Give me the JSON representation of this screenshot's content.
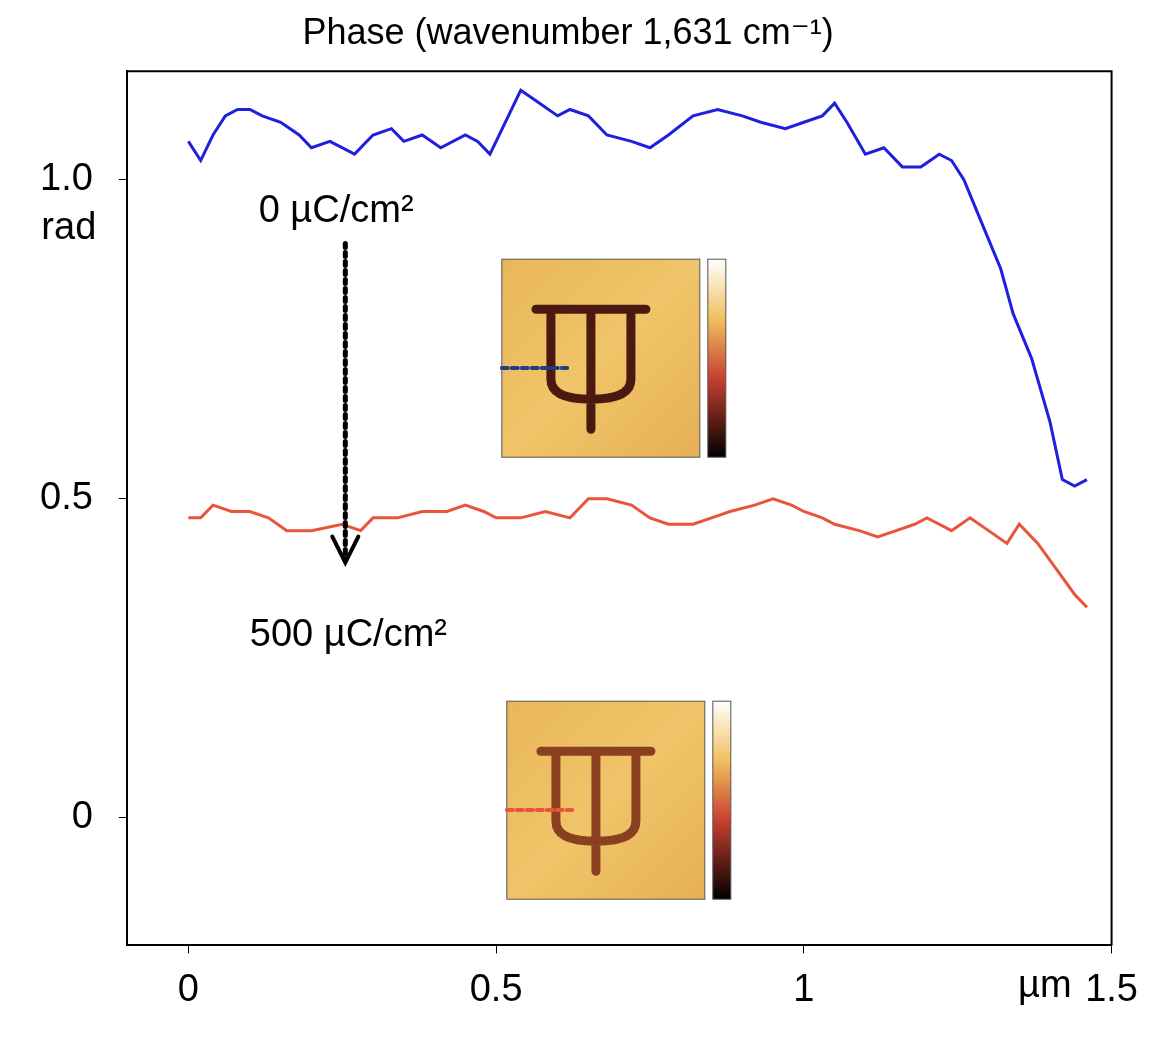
{
  "chart_data": {
    "type": "line",
    "title": "Phase (wavenumber 1,631 cm⁻¹)",
    "y_label": "rad",
    "x_label": "µm",
    "xlim": [
      -0.1,
      1.5
    ],
    "ylim": [
      -0.2,
      1.17
    ],
    "xticks": [
      0,
      0.5,
      1,
      1.5
    ],
    "yticks": [
      0,
      0.5,
      {
        "value": 1,
        "label": "1.0"
      }
    ],
    "grid": false,
    "series": [
      {
        "name": "0 µC/cm²",
        "color": "#1f1fe0",
        "marker": "none",
        "line_style": "solid",
        "x": [
          0,
          0.02,
          0.04,
          0.06,
          0.08,
          0.1,
          0.12,
          0.15,
          0.18,
          0.2,
          0.23,
          0.27,
          0.3,
          0.33,
          0.35,
          0.38,
          0.41,
          0.45,
          0.47,
          0.49,
          0.52,
          0.54,
          0.57,
          0.6,
          0.62,
          0.65,
          0.68,
          0.72,
          0.75,
          0.78,
          0.82,
          0.86,
          0.9,
          0.93,
          0.97,
          1.0,
          1.03,
          1.05,
          1.07,
          1.1,
          1.13,
          1.16,
          1.19,
          1.22,
          1.24,
          1.26,
          1.29,
          1.32,
          1.34,
          1.37,
          1.4,
          1.42,
          1.44,
          1.46
        ],
        "values": [
          1.06,
          1.03,
          1.07,
          1.1,
          1.11,
          1.11,
          1.1,
          1.09,
          1.07,
          1.05,
          1.06,
          1.04,
          1.07,
          1.08,
          1.06,
          1.07,
          1.05,
          1.07,
          1.06,
          1.04,
          1.1,
          1.14,
          1.12,
          1.1,
          1.11,
          1.1,
          1.07,
          1.06,
          1.05,
          1.07,
          1.1,
          1.11,
          1.1,
          1.09,
          1.08,
          1.09,
          1.1,
          1.12,
          1.09,
          1.04,
          1.05,
          1.02,
          1.02,
          1.04,
          1.03,
          1.0,
          0.93,
          0.86,
          0.79,
          0.72,
          0.62,
          0.53,
          0.52,
          0.53
        ]
      },
      {
        "name": "500 µC/cm²",
        "color": "#e8553a",
        "marker": "none",
        "line_style": "solid",
        "x": [
          0,
          0.02,
          0.04,
          0.07,
          0.1,
          0.13,
          0.16,
          0.2,
          0.25,
          0.28,
          0.3,
          0.34,
          0.38,
          0.42,
          0.45,
          0.48,
          0.5,
          0.54,
          0.58,
          0.62,
          0.65,
          0.68,
          0.72,
          0.75,
          0.78,
          0.82,
          0.85,
          0.88,
          0.92,
          0.95,
          0.98,
          1.0,
          1.03,
          1.05,
          1.09,
          1.12,
          1.15,
          1.18,
          1.2,
          1.22,
          1.24,
          1.27,
          1.3,
          1.33,
          1.35,
          1.38,
          1.41,
          1.44,
          1.46
        ],
        "values": [
          0.47,
          0.47,
          0.49,
          0.48,
          0.48,
          0.47,
          0.45,
          0.45,
          0.46,
          0.45,
          0.47,
          0.47,
          0.48,
          0.48,
          0.49,
          0.48,
          0.47,
          0.47,
          0.48,
          0.47,
          0.5,
          0.5,
          0.49,
          0.47,
          0.46,
          0.46,
          0.47,
          0.48,
          0.49,
          0.5,
          0.49,
          0.48,
          0.47,
          0.46,
          0.45,
          0.44,
          0.45,
          0.46,
          0.47,
          0.46,
          0.45,
          0.47,
          0.45,
          0.43,
          0.46,
          0.43,
          0.39,
          0.35,
          0.33
        ]
      }
    ]
  }
}
